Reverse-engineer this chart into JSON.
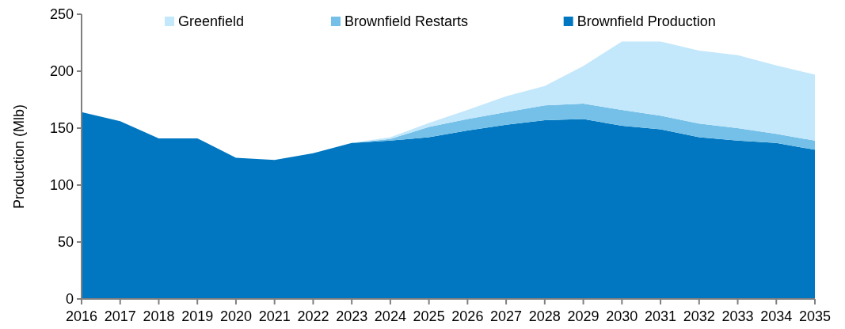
{
  "chart_data": {
    "type": "area",
    "stacked": true,
    "ylabel": "Production (Mlb)",
    "legend": "top",
    "categories": [
      "2016",
      "2017",
      "2018",
      "2019",
      "2020",
      "2021",
      "2022",
      "2023",
      "2024",
      "2025",
      "2026",
      "2027",
      "2028",
      "2029",
      "2030",
      "2031",
      "2032",
      "2033",
      "2034",
      "2035"
    ],
    "ylim": [
      0,
      250
    ],
    "yticks": [
      0,
      50,
      100,
      150,
      200,
      250
    ],
    "series": [
      {
        "name": "Brownfield Production",
        "color": "#0077c0",
        "values": [
          164,
          156,
          141,
          141,
          124,
          122,
          128,
          137,
          139,
          142,
          148,
          153,
          157,
          158,
          152,
          149,
          142,
          139,
          137,
          131
        ]
      },
      {
        "name": "Brownfield Restarts",
        "color": "#74c0e8",
        "values": [
          0,
          0,
          0,
          0,
          0,
          0,
          0,
          0,
          1.5,
          9,
          10,
          11,
          13,
          13.5,
          14,
          12,
          12,
          11,
          8,
          8
        ]
      },
      {
        "name": "Greenfield",
        "color": "#c3e7fb",
        "values": [
          0,
          0,
          0,
          0,
          0,
          0,
          0,
          0,
          1.5,
          3.5,
          8,
          14,
          17,
          33,
          60,
          65,
          64,
          64,
          60,
          58
        ]
      }
    ]
  }
}
